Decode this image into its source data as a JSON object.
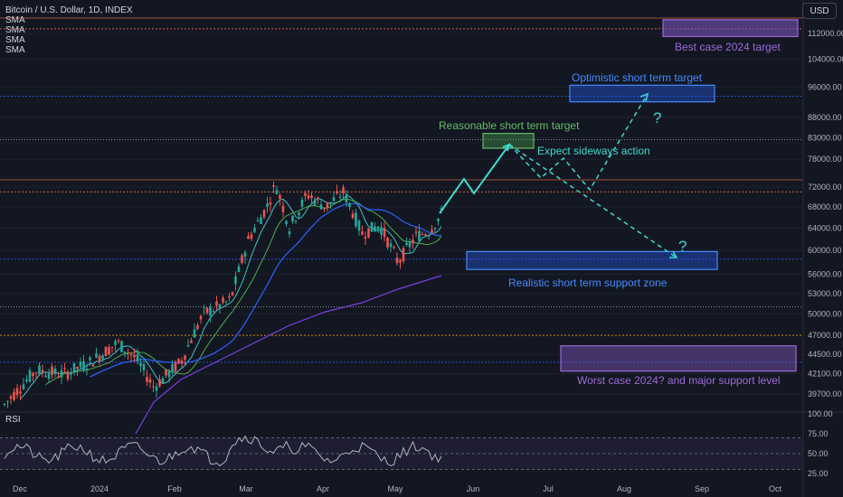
{
  "header": {
    "symbol_line": "Bitcoin / U.S. Dollar, 1D, INDEX",
    "indicators": [
      "SMA",
      "SMA",
      "SMA",
      "SMA"
    ]
  },
  "currency_button": "USD",
  "rsi_label": "RSI",
  "colors": {
    "background": "#131722",
    "candle_up": "#26a69a",
    "candle_down": "#ef5350",
    "sma_fast": "#3ec3c3",
    "sma_mid": "#4caf50",
    "sma_slow": "#2962ff",
    "sma_long": "#7b3fe4",
    "annotation_cyan": "#3dd9d0",
    "annotation_blue": "#2962ff",
    "annotation_purple": "#7e57c2",
    "annotation_green": "#4caf50"
  },
  "chart_data": {
    "type": "candlestick",
    "price_axis_ticks": [
      "112000.00",
      "104000.00",
      "96000.00",
      "88000.00",
      "83000.00",
      "78000.00",
      "72000.00",
      "68000.00",
      "64000.00",
      "60000.00",
      "56000.00",
      "53000.00",
      "50000.00",
      "47000.00",
      "44500.00",
      "42100.00",
      "39700.00"
    ],
    "rsi_axis_ticks": [
      "100.00",
      "75.00",
      "50.00",
      "25.00"
    ],
    "time_axis_labels": [
      "Dec",
      "2024",
      "Feb",
      "Mar",
      "Apr",
      "May",
      "Jun",
      "Jul",
      "Aug",
      "Sep",
      "Oct"
    ],
    "annotations": {
      "best_case": "Best case 2024 target",
      "optimistic": "Optimistic short term target",
      "reasonable": "Reasonable short term target",
      "sideways": "Expect sideways action",
      "realistic": "Realistic short term support zone",
      "worst_case": "Worst case 2024? and major support level",
      "question1": "?",
      "question2": "?"
    },
    "horizontal_levels": [
      113500,
      93500,
      82500,
      71000,
      58500,
      51000,
      47000,
      43500
    ],
    "zones": {
      "best_case": [
        111000,
        116500
      ],
      "optimistic": [
        92000,
        96500
      ],
      "reasonable": [
        80500,
        84000
      ],
      "realistic": [
        56800,
        59800
      ],
      "worst_case": [
        42400,
        45600
      ]
    },
    "rsi_levels": [
      70,
      50,
      30
    ]
  }
}
